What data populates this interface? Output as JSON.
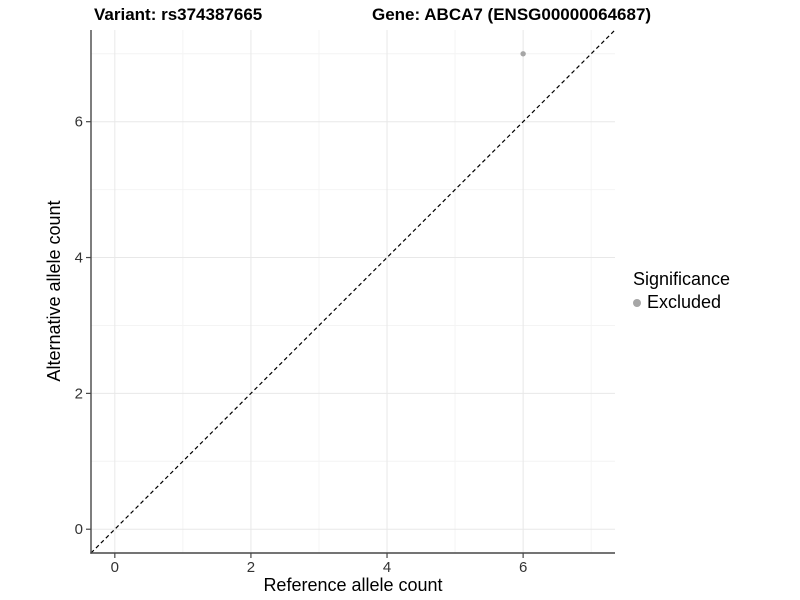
{
  "chart_data": {
    "type": "scatter",
    "title_left": "Variant: rs374387665",
    "title_right": "Gene: ABCA7 (ENSG00000064687)",
    "xlabel": "Reference allele count",
    "ylabel": "Alternative allele count",
    "xlim": [
      -0.35,
      7.35
    ],
    "ylim": [
      -0.35,
      7.35
    ],
    "x_major_ticks": [
      0,
      2,
      4,
      6
    ],
    "y_major_ticks": [
      0,
      2,
      4,
      6
    ],
    "x_minor_ticks": [
      1,
      3,
      5,
      7
    ],
    "y_minor_ticks": [
      1,
      3,
      5,
      7
    ],
    "grid": true,
    "reference_line": {
      "type": "identity",
      "style": "dashed",
      "color": "#000000"
    },
    "series": [
      {
        "name": "Excluded",
        "color": "#a6a6a6",
        "points": [
          [
            6,
            7
          ]
        ]
      }
    ],
    "legend": {
      "title": "Significance",
      "position": "right",
      "items": [
        {
          "label": "Excluded",
          "color": "#a6a6a6"
        }
      ]
    }
  }
}
